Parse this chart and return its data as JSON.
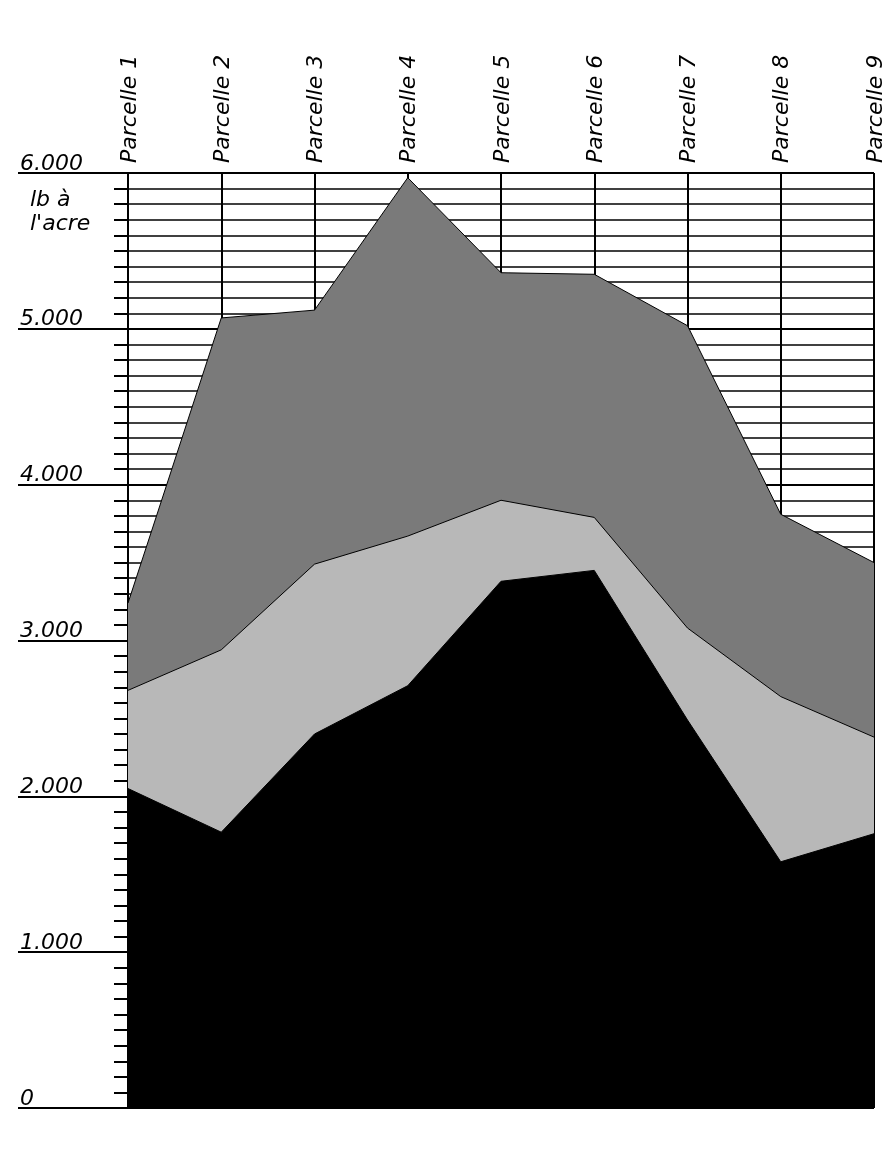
{
  "chart_data": {
    "type": "area",
    "ylabel": "lb à l'acre",
    "categories": [
      "Parcelle 1",
      "Parcelle 2",
      "Parcelle 3",
      "Parcelle 4",
      "Parcelle 5",
      "Parcelle 6",
      "Parcelle 7",
      "Parcelle 8",
      "Parcelle 9"
    ],
    "series": [
      {
        "color": "#7a7a7a",
        "values": [
          3240,
          5070,
          5120,
          5970,
          5360,
          5350,
          5020,
          3810,
          3500
        ]
      },
      {
        "color": "#b8b8b8",
        "values": [
          2680,
          2940,
          3490,
          3670,
          3900,
          3790,
          3080,
          2640,
          2380
        ]
      },
      {
        "color": "#000000",
        "values": [
          2050,
          1770,
          2400,
          2710,
          3380,
          3450,
          2490,
          1580,
          1760
        ]
      }
    ],
    "ylim": [
      0,
      6000
    ],
    "yticks": [
      0,
      {
        "value": 1000,
        "label": "1.000"
      },
      {
        "value": 2000,
        "label": "2.000"
      },
      {
        "value": 3000,
        "label": "3.000"
      },
      {
        "value": 4000,
        "label": "4.000"
      },
      {
        "value": 5000,
        "label": "5.000"
      },
      {
        "value": 6000,
        "label": "6.000"
      }
    ],
    "grid": true
  }
}
